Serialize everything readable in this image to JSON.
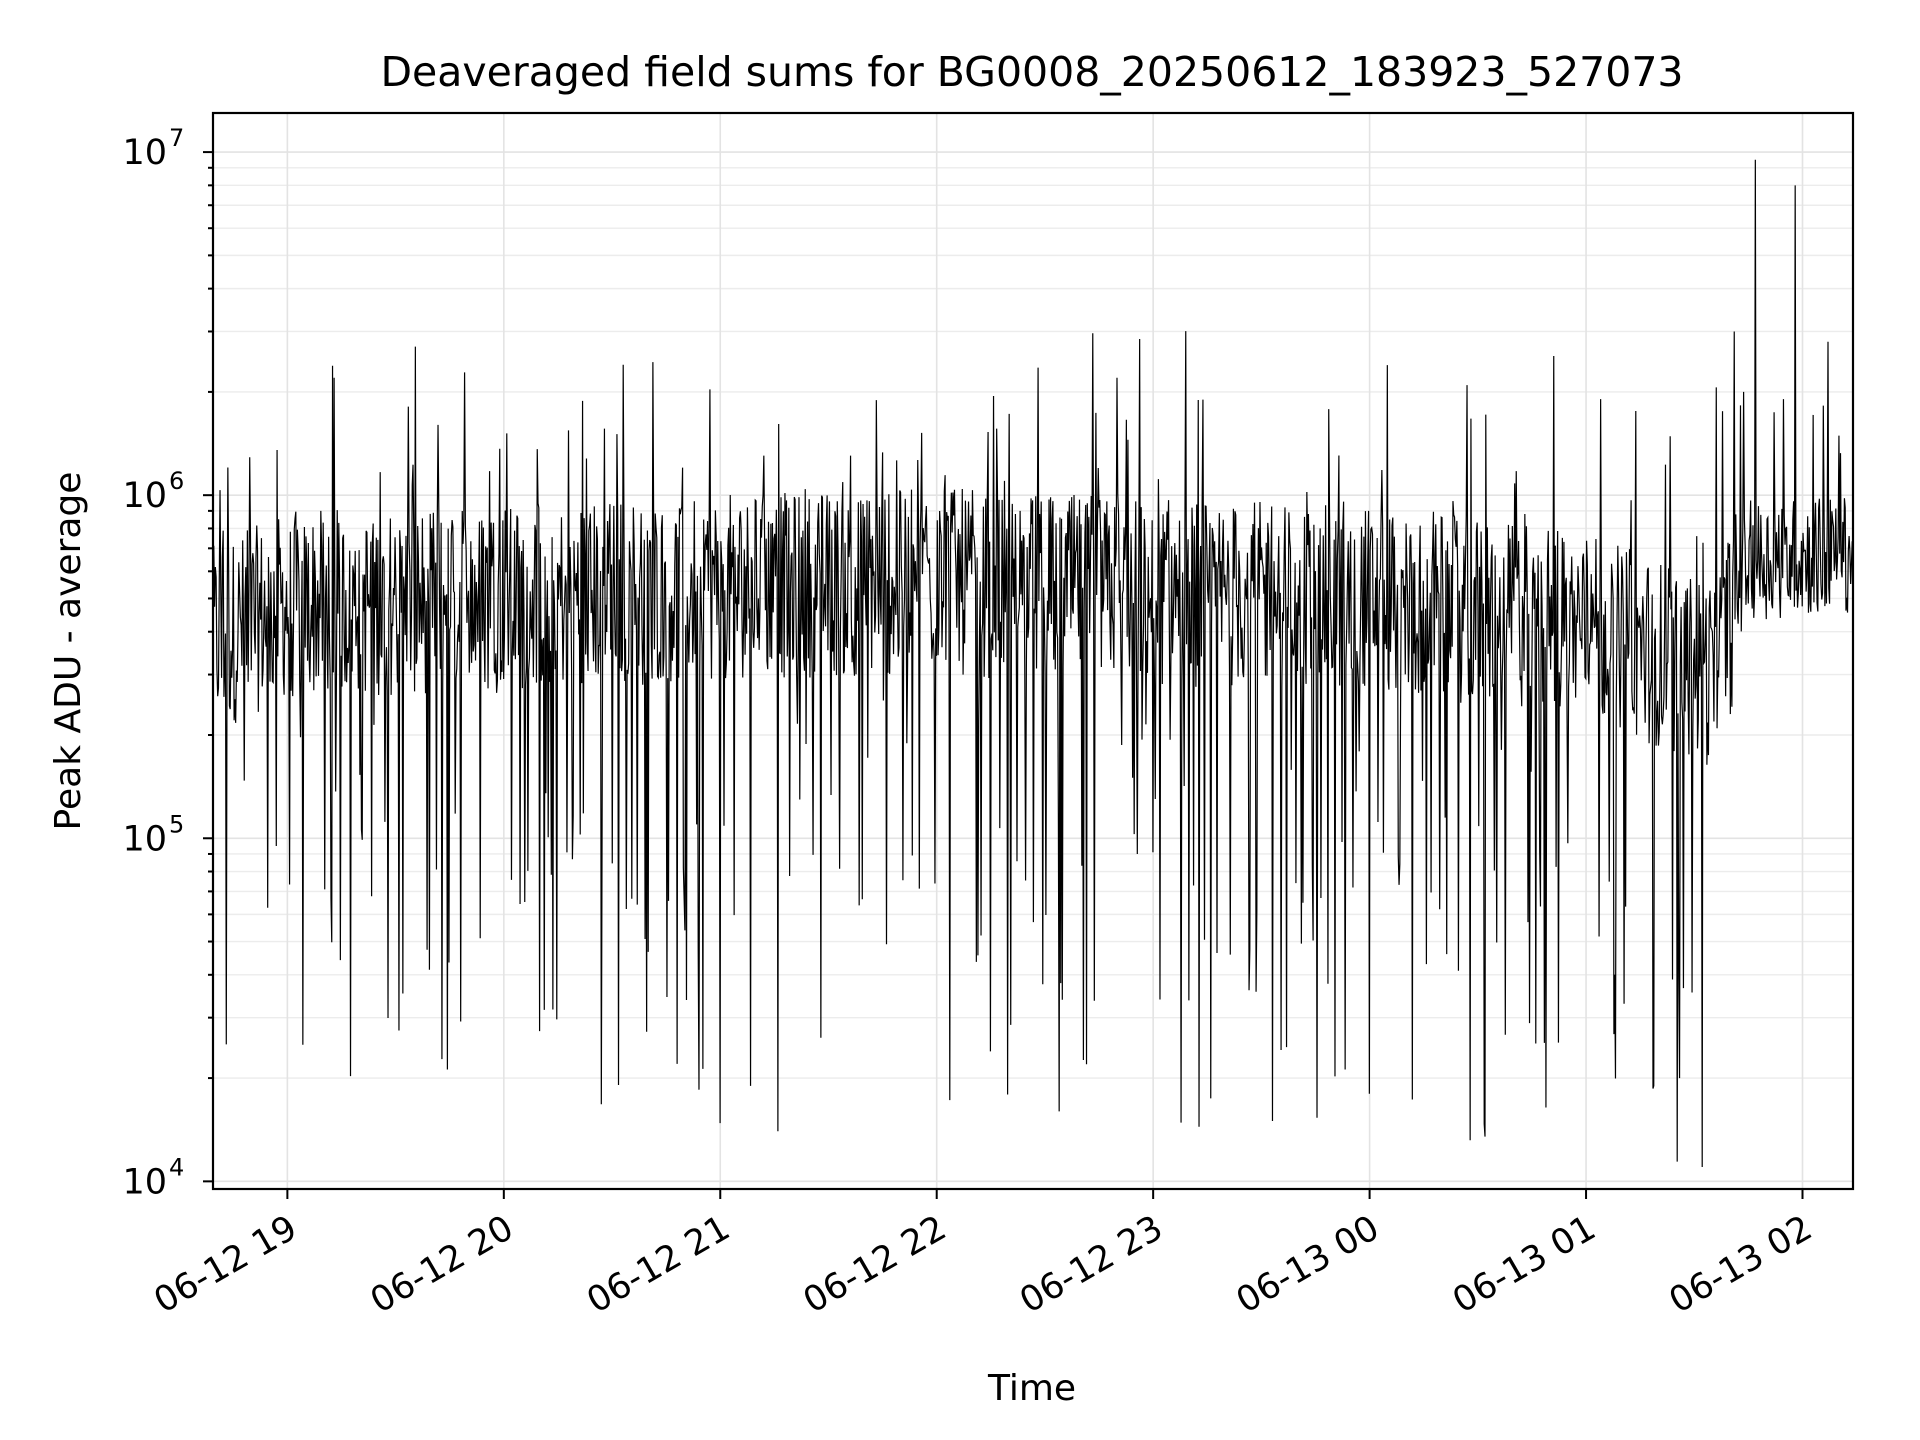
{
  "chart_data": {
    "type": "line",
    "title": "Deaveraged field sums for BG0008_20250612_183923_527073",
    "xlabel": "Time",
    "ylabel": "Peak ADU - average",
    "yscale": "log",
    "ylim": [
      9500,
      13000000
    ],
    "xlim": [
      "2025-06-12 18:39:23",
      "2025-06-13 02:14:00"
    ],
    "x_ticks": [
      "06-12 19",
      "06-12 20",
      "06-12 21",
      "06-12 22",
      "06-12 23",
      "06-13 00",
      "06-13 01",
      "06-13 02"
    ],
    "y_ticks": [
      {
        "value": 10000,
        "base": "10",
        "exp": "4"
      },
      {
        "value": 100000,
        "base": "10",
        "exp": "5"
      },
      {
        "value": 1000000,
        "base": "10",
        "exp": "6"
      },
      {
        "value": 10000000,
        "base": "10",
        "exp": "7"
      }
    ],
    "grid": true,
    "line_color": "#000000",
    "series": [
      {
        "x_start": "2025-06-12 18:39:23",
        "x_end": "2025-06-13 02:14:00",
        "anchor_times": [
          "2025-06-12 18:40",
          "2025-06-12 19:00",
          "2025-06-12 20:00",
          "2025-06-12 21:00",
          "2025-06-12 22:00",
          "2025-06-12 23:00",
          "2025-06-13 00:00",
          "2025-06-13 01:00",
          "2025-06-13 01:35",
          "2025-06-13 01:45",
          "2025-06-13 02:14"
        ],
        "typical_values": [
          380000,
          480000,
          500000,
          540000,
          560000,
          520000,
          500000,
          420000,
          300000,
          620000,
          650000
        ],
        "notable_peaks": [
          {
            "time": "2025-06-13 01:47",
            "value": 9500000
          },
          {
            "time": "2025-06-13 01:58",
            "value": 8000000
          },
          {
            "time": "2025-06-13 01:41",
            "value": 3000000
          },
          {
            "time": "2025-06-13 02:07",
            "value": 2800000
          },
          {
            "time": "2025-06-12 20:33",
            "value": 2400000
          },
          {
            "time": "2025-06-12 19:13",
            "value": 2200000
          },
          {
            "time": "2025-06-12 22:50",
            "value": 2200000
          }
        ],
        "notable_dips": [
          {
            "time": "2025-06-12 21:16",
            "value": 14000
          },
          {
            "time": "2025-06-13 00:32",
            "value": 13500
          },
          {
            "time": "2025-06-12 23:33",
            "value": 15000
          },
          {
            "time": "2025-06-12 22:34",
            "value": 16000
          },
          {
            "time": "2025-06-12 20:54",
            "value": 18500
          },
          {
            "time": "2025-06-13 00:00",
            "value": 18000
          }
        ]
      }
    ]
  }
}
